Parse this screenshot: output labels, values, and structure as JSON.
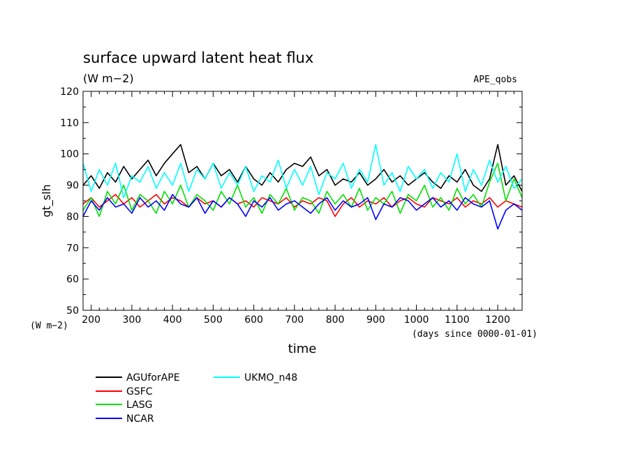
{
  "chart_data": {
    "type": "line",
    "title": "surface upward latent heat flux",
    "subtitle": "(W m−2)",
    "experiment_label": "APE_qobs",
    "ylabel": "gt_slh",
    "xlabel": "time",
    "x_units_label": "(days since 0000-01-01)",
    "y_units_label": "(W m−2)",
    "xlim": [
      180,
      1260
    ],
    "ylim": [
      50,
      120
    ],
    "x_ticks": [
      200,
      300,
      400,
      500,
      600,
      700,
      800,
      900,
      1000,
      1100,
      1200
    ],
    "x_tick_labels": [
      "200",
      "300",
      "400",
      "500",
      "600",
      "700",
      "800",
      "900",
      "1000",
      "1100",
      "1200"
    ],
    "y_ticks": [
      50,
      60,
      70,
      80,
      90,
      100,
      110,
      120
    ],
    "y_tick_labels": [
      "50",
      "60",
      "70",
      "80",
      "90",
      "100",
      "110",
      "120"
    ],
    "grid": false,
    "legend_position": "bottom",
    "x": [
      180,
      200,
      220,
      240,
      260,
      280,
      300,
      320,
      340,
      360,
      380,
      400,
      420,
      440,
      460,
      480,
      500,
      520,
      540,
      560,
      580,
      600,
      620,
      640,
      660,
      680,
      700,
      720,
      740,
      760,
      780,
      800,
      820,
      840,
      860,
      880,
      900,
      920,
      940,
      960,
      980,
      1000,
      1020,
      1040,
      1060,
      1080,
      1100,
      1120,
      1140,
      1160,
      1180,
      1200,
      1220,
      1240,
      1260
    ],
    "series": [
      {
        "name": "AGUforAPE",
        "color": "#000000",
        "values": [
          90,
          93,
          89,
          94,
          91,
          96,
          92,
          95,
          98,
          93,
          97,
          100,
          103,
          94,
          96,
          92,
          97,
          93,
          95,
          91,
          96,
          92,
          90,
          94,
          91,
          95,
          97,
          96,
          99,
          93,
          95,
          90,
          92,
          91,
          94,
          90,
          92,
          95,
          91,
          93,
          90,
          92,
          94,
          91,
          89,
          93,
          91,
          95,
          90,
          88,
          92,
          103,
          90,
          93,
          88
        ]
      },
      {
        "name": "GSFC",
        "color": "#ff0000",
        "values": [
          84,
          86,
          83,
          85,
          87,
          84,
          86,
          83,
          85,
          87,
          84,
          86,
          85,
          83,
          86,
          84,
          85,
          83,
          86,
          84,
          85,
          83,
          86,
          85,
          84,
          86,
          83,
          85,
          84,
          86,
          85,
          80,
          84,
          86,
          83,
          85,
          84,
          86,
          83,
          85,
          86,
          84,
          83,
          86,
          85,
          84,
          86,
          83,
          85,
          84,
          86,
          83,
          85,
          84,
          83
        ]
      },
      {
        "name": "LASG",
        "color": "#00e000",
        "values": [
          82,
          86,
          80,
          88,
          84,
          90,
          82,
          87,
          85,
          81,
          88,
          84,
          90,
          83,
          87,
          85,
          82,
          88,
          84,
          90,
          83,
          86,
          81,
          87,
          84,
          89,
          82,
          86,
          85,
          81,
          88,
          84,
          87,
          83,
          89,
          82,
          86,
          84,
          88,
          81,
          87,
          85,
          90,
          83,
          86,
          82,
          89,
          84,
          87,
          83,
          91,
          97,
          85,
          92,
          86
        ]
      },
      {
        "name": "NCAR",
        "color": "#0000ff",
        "values": [
          80,
          85,
          82,
          86,
          83,
          84,
          81,
          86,
          83,
          85,
          82,
          87,
          84,
          83,
          86,
          81,
          85,
          83,
          86,
          84,
          80,
          85,
          83,
          86,
          82,
          84,
          85,
          83,
          81,
          84,
          86,
          82,
          85,
          83,
          84,
          86,
          79,
          84,
          83,
          86,
          85,
          82,
          84,
          86,
          83,
          85,
          82,
          86,
          84,
          83,
          85,
          76,
          82,
          84,
          82
        ]
      },
      {
        "name": "UKMO_n48",
        "color": "#00ffff",
        "values": [
          97,
          88,
          95,
          90,
          97,
          86,
          93,
          91,
          96,
          89,
          94,
          90,
          97,
          88,
          95,
          92,
          97,
          89,
          94,
          90,
          96,
          88,
          93,
          91,
          98,
          89,
          95,
          90,
          96,
          87,
          94,
          92,
          97,
          89,
          95,
          91,
          103,
          90,
          94,
          88,
          96,
          92,
          95,
          89,
          94,
          91,
          100,
          88,
          95,
          90,
          98,
          91,
          96,
          89,
          92
        ]
      }
    ]
  }
}
